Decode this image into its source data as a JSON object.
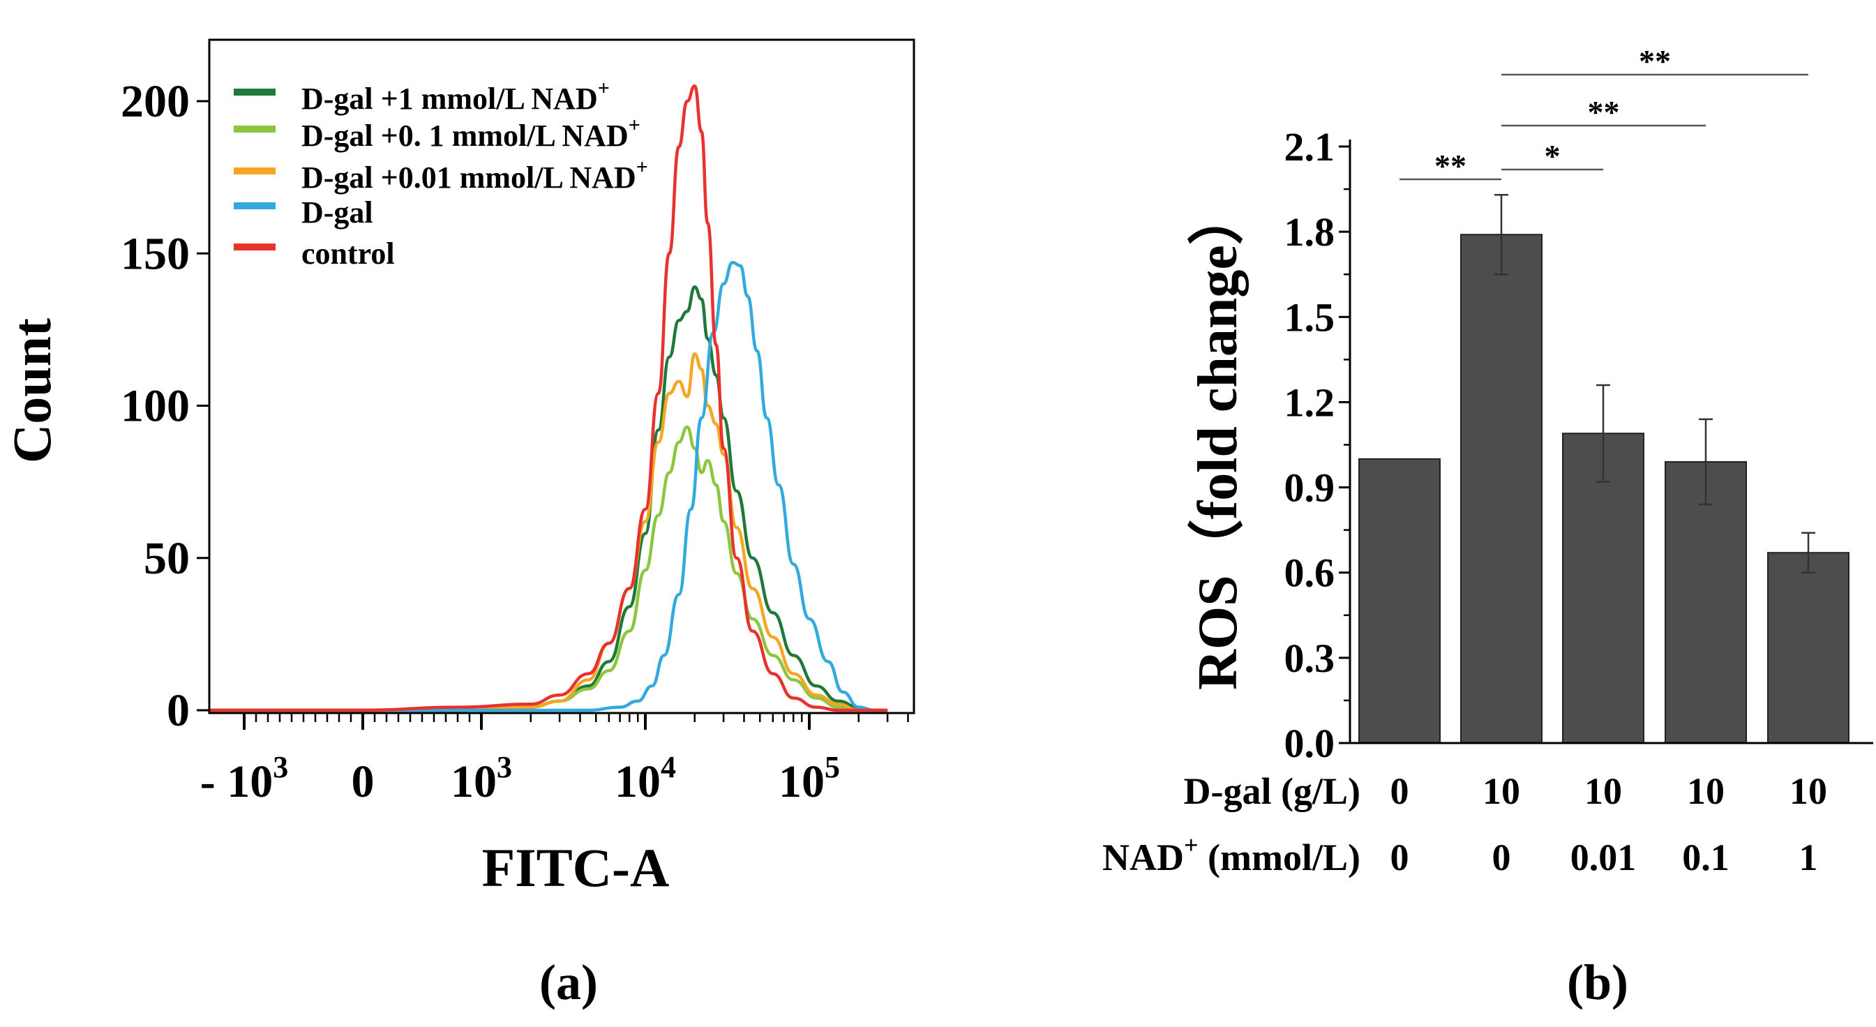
{
  "chart_data": [
    {
      "type": "line",
      "panel_label": "(a)",
      "xlabel": "FITC-A",
      "ylabel": "Count",
      "x_scale": "biexponential",
      "xlim": [
        -2000,
        300000
      ],
      "ylim": [
        0,
        220
      ],
      "y_ticks": [
        0,
        50,
        100,
        150,
        200
      ],
      "y_tick_labels": [
        "0",
        "50",
        "100",
        "150",
        "200"
      ],
      "x_ticks": [
        {
          "value": -1000,
          "base": "- 10",
          "exp": "3"
        },
        {
          "value": 0,
          "base": "0",
          "exp": ""
        },
        {
          "value": 1000,
          "base": "10",
          "exp": "3"
        },
        {
          "value": 10000,
          "base": "10",
          "exp": "4"
        },
        {
          "value": 100000,
          "base": "10",
          "exp": "5"
        }
      ],
      "legend_position": "top-left",
      "series": [
        {
          "name": "D-gal +1 mmol/L  NAD",
          "sup": "+",
          "color": "#1f7a3a",
          "x": [
            -2000,
            0,
            800,
            2000,
            3000,
            4500,
            6000,
            8000,
            10000,
            12000,
            14000,
            16000,
            18000,
            20000,
            22000,
            24000,
            27000,
            30000,
            36000,
            45000,
            60000,
            80000,
            110000,
            150000,
            200000,
            250000,
            300000
          ],
          "y": [
            0,
            0,
            0,
            1,
            3,
            8,
            16,
            34,
            58,
            92,
            116,
            128,
            131,
            139,
            135,
            122,
            110,
            96,
            72,
            50,
            32,
            18,
            8,
            3,
            1,
            0,
            0
          ]
        },
        {
          "name": "D-gal +0. 1 mmol/L NAD",
          "sup": "+",
          "color": "#8cc63f",
          "x": [
            -2000,
            0,
            800,
            2000,
            3000,
            4500,
            6000,
            8000,
            10000,
            12000,
            14000,
            16000,
            18000,
            20000,
            22000,
            24000,
            27000,
            30000,
            36000,
            45000,
            60000,
            80000,
            110000,
            150000,
            200000,
            250000,
            300000
          ],
          "y": [
            0,
            0,
            0,
            1,
            3,
            7,
            13,
            26,
            46,
            64,
            78,
            88,
            93,
            86,
            78,
            82,
            74,
            62,
            45,
            30,
            18,
            10,
            4,
            1,
            0,
            0,
            0
          ]
        },
        {
          "name": "D-gal +0.01 mmol/L  NAD",
          "sup": "+",
          "color": "#f5a623",
          "x": [
            -2000,
            0,
            800,
            2000,
            3000,
            4500,
            6000,
            8000,
            10000,
            12000,
            14000,
            16000,
            18000,
            20000,
            22000,
            24000,
            27000,
            30000,
            36000,
            45000,
            60000,
            80000,
            110000,
            150000,
            200000,
            250000,
            300000
          ],
          "y": [
            0,
            0,
            0,
            1,
            3,
            10,
            22,
            40,
            62,
            88,
            104,
            108,
            103,
            117,
            112,
            100,
            94,
            84,
            60,
            40,
            24,
            12,
            5,
            2,
            0,
            0,
            0
          ]
        },
        {
          "name": "D-gal",
          "sup": "",
          "color": "#33aadd",
          "x": [
            -2000,
            0,
            2000,
            4500,
            7000,
            9000,
            11000,
            13000,
            16000,
            19000,
            22000,
            26000,
            30000,
            34000,
            38000,
            42000,
            48000,
            55000,
            65000,
            80000,
            100000,
            130000,
            160000,
            200000,
            250000,
            300000
          ],
          "y": [
            0,
            0,
            0,
            0,
            1,
            3,
            8,
            18,
            38,
            66,
            96,
            124,
            140,
            147,
            146,
            136,
            118,
            96,
            74,
            48,
            30,
            16,
            6,
            1,
            0,
            0
          ]
        },
        {
          "name": "control",
          "sup": "",
          "color": "#e8322e",
          "x": [
            -2000,
            0,
            800,
            2000,
            3000,
            4500,
            6000,
            8000,
            10000,
            12000,
            14000,
            16000,
            18000,
            20000,
            22000,
            24000,
            27000,
            30000,
            36000,
            45000,
            60000,
            80000,
            110000,
            150000,
            200000,
            250000,
            300000
          ],
          "y": [
            0,
            0,
            1,
            2,
            5,
            12,
            22,
            40,
            66,
            104,
            150,
            185,
            200,
            205,
            190,
            160,
            120,
            86,
            50,
            26,
            12,
            4,
            1,
            0,
            0,
            0,
            0
          ]
        }
      ]
    },
    {
      "type": "bar",
      "panel_label": "(b)",
      "ylabel": "ROS（fold change）",
      "ylim": [
        0,
        2.1
      ],
      "y_ticks": [
        0.0,
        0.3,
        0.6,
        0.9,
        1.2,
        1.5,
        1.8,
        2.1
      ],
      "y_tick_labels": [
        "0.0",
        "0.3",
        "0.6",
        "0.9",
        "1.2",
        "1.5",
        "1.8",
        "2.1"
      ],
      "bar_color": "#4d4d4d",
      "values": [
        1.0,
        1.79,
        1.09,
        0.99,
        0.67
      ],
      "errors": [
        0.0,
        0.14,
        0.17,
        0.15,
        0.07
      ],
      "condition_rows": [
        {
          "label": "D-gal (g/L)",
          "label_sup": "",
          "values": [
            "0",
            "10",
            "10",
            "10",
            "10"
          ]
        },
        {
          "label": "NAD",
          "label_sup": "+",
          "label_suffix": " (mmol/L)",
          "values": [
            "0",
            "0",
            "0.01",
            "0.1",
            "1"
          ]
        }
      ],
      "significance": [
        {
          "from": 0,
          "to": 1,
          "label": "**"
        },
        {
          "from": 1,
          "to": 2,
          "label": "*"
        },
        {
          "from": 1,
          "to": 3,
          "label": "**"
        },
        {
          "from": 1,
          "to": 4,
          "label": "**"
        }
      ]
    }
  ]
}
